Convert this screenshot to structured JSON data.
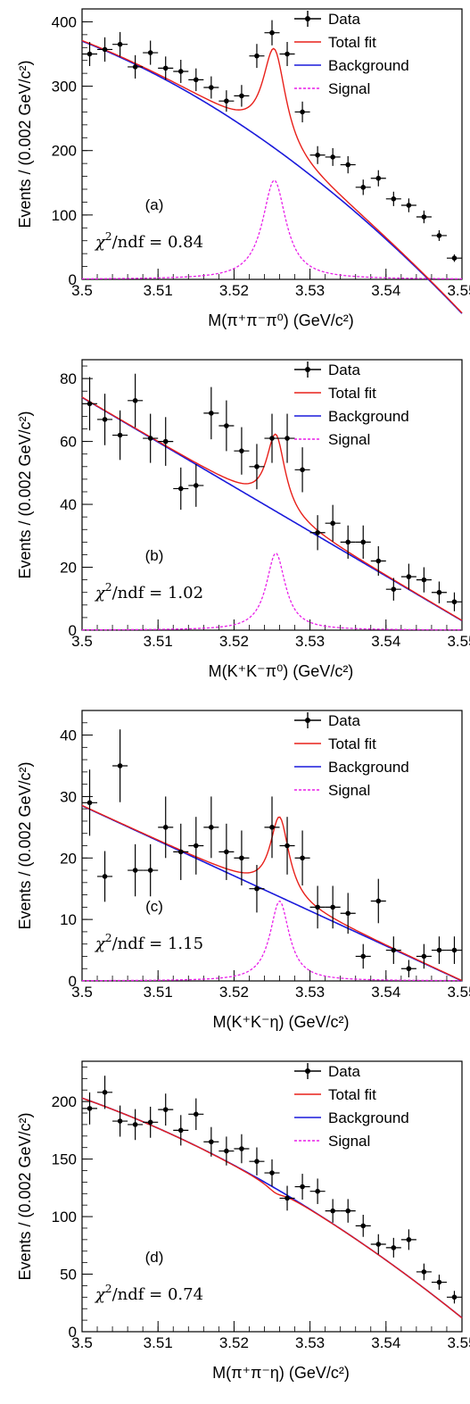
{
  "legend": {
    "data": "Data",
    "total": "Total fit",
    "background": "Background",
    "signal": "Signal"
  },
  "colors": {
    "data": "#000000",
    "total": "#e8201a",
    "background": "#1a1adb",
    "signal": "#e81ee8"
  },
  "chart_data": [
    {
      "type": "scatter",
      "tag": "(a)",
      "chi2": "0.84",
      "xlabel": "M(π⁺π⁻π⁰) (GeV/c²)",
      "ylabel": "Events / (0.002 GeV/c²)",
      "xlim": [
        3.5,
        3.55
      ],
      "ylim": [
        0,
        420
      ],
      "xticks": [
        3.5,
        3.51,
        3.52,
        3.53,
        3.54,
        3.55
      ],
      "yticks": [
        0,
        100,
        200,
        300,
        400
      ],
      "x": [
        3.501,
        3.503,
        3.505,
        3.507,
        3.509,
        3.511,
        3.513,
        3.515,
        3.517,
        3.519,
        3.521,
        3.523,
        3.525,
        3.527,
        3.529,
        3.531,
        3.533,
        3.535,
        3.537,
        3.539,
        3.541,
        3.543,
        3.545,
        3.547,
        3.549
      ],
      "y": [
        350,
        357,
        365,
        330,
        352,
        328,
        323,
        310,
        298,
        277,
        285,
        347,
        383,
        350,
        260,
        193,
        190,
        178,
        143,
        157,
        125,
        115,
        97,
        68,
        33
      ],
      "background": {
        "coef": [
          370,
          -4610,
          -77000
        ]
      },
      "signal": {
        "peak": 154,
        "mean": 3.5253,
        "width": 0.0022
      }
    },
    {
      "type": "scatter",
      "tag": "(b)",
      "chi2": "1.02",
      "xlabel": "M(K⁺K⁻π⁰) (GeV/c²)",
      "ylabel": "Events / (0.002 GeV/c²)",
      "xlim": [
        3.5,
        3.55
      ],
      "ylim": [
        0,
        86
      ],
      "xticks": [
        3.5,
        3.51,
        3.52,
        3.53,
        3.54,
        3.55
      ],
      "yticks": [
        0,
        20,
        40,
        60,
        80
      ],
      "x": [
        3.501,
        3.503,
        3.505,
        3.507,
        3.509,
        3.511,
        3.513,
        3.515,
        3.517,
        3.519,
        3.521,
        3.523,
        3.525,
        3.527,
        3.529,
        3.531,
        3.533,
        3.535,
        3.537,
        3.539,
        3.541,
        3.543,
        3.545,
        3.547,
        3.549
      ],
      "y": [
        72,
        67,
        62,
        73,
        61,
        60,
        45,
        46,
        69,
        65,
        57,
        52,
        61,
        61,
        51,
        31,
        34,
        28,
        28,
        22,
        13,
        17,
        16,
        12,
        9
      ],
      "background": {
        "coef": [
          74,
          -1420,
          0
        ]
      },
      "signal": {
        "peak": 24.5,
        "mean": 3.5255,
        "width": 0.0018
      }
    },
    {
      "type": "scatter",
      "tag": "(c)",
      "chi2": "1.15",
      "xlabel": "M(K⁺K⁻η) (GeV/c²)",
      "ylabel": "Events / (0.002 GeV/c²)",
      "xlim": [
        3.5,
        3.55
      ],
      "ylim": [
        0,
        44
      ],
      "xticks": [
        3.5,
        3.51,
        3.52,
        3.53,
        3.54,
        3.55
      ],
      "yticks": [
        0,
        10,
        20,
        30,
        40
      ],
      "x": [
        3.501,
        3.503,
        3.505,
        3.507,
        3.509,
        3.511,
        3.513,
        3.515,
        3.517,
        3.519,
        3.521,
        3.523,
        3.525,
        3.527,
        3.529,
        3.531,
        3.533,
        3.535,
        3.537,
        3.539,
        3.541,
        3.543,
        3.545,
        3.547,
        3.549
      ],
      "y": [
        29,
        17,
        35,
        18,
        18,
        25,
        21,
        22,
        25,
        21,
        20,
        15,
        25,
        22,
        20,
        12,
        12,
        11,
        4,
        13,
        5,
        2,
        4,
        5,
        5
      ],
      "background": {
        "coef": [
          28.5,
          -570,
          0
        ]
      },
      "signal": {
        "peak": 13,
        "mean": 3.526,
        "width": 0.0018
      }
    },
    {
      "type": "scatter",
      "tag": "(d)",
      "chi2": "0.74",
      "xlabel": "M(π⁺π⁻η) (GeV/c²)",
      "ylabel": "Events / (0.002 GeV/c²)",
      "xlim": [
        3.5,
        3.55
      ],
      "ylim": [
        0,
        235
      ],
      "xticks": [
        3.5,
        3.51,
        3.52,
        3.53,
        3.54,
        3.55
      ],
      "yticks": [
        0,
        50,
        100,
        150,
        200
      ],
      "x": [
        3.501,
        3.503,
        3.505,
        3.507,
        3.509,
        3.511,
        3.513,
        3.515,
        3.517,
        3.519,
        3.521,
        3.523,
        3.525,
        3.527,
        3.529,
        3.531,
        3.533,
        3.535,
        3.537,
        3.539,
        3.541,
        3.543,
        3.545,
        3.547,
        3.549
      ],
      "y": [
        194,
        208,
        183,
        180,
        182,
        193,
        175,
        189,
        165,
        157,
        159,
        148,
        138,
        116,
        126,
        122,
        105,
        105,
        92,
        76,
        73,
        80,
        52,
        43,
        30
      ],
      "background": {
        "coef": [
          203,
          -2320,
          -30000
        ]
      },
      "signal": {
        "peak": -4,
        "mean": 3.5255,
        "width": 0.0016
      }
    }
  ]
}
